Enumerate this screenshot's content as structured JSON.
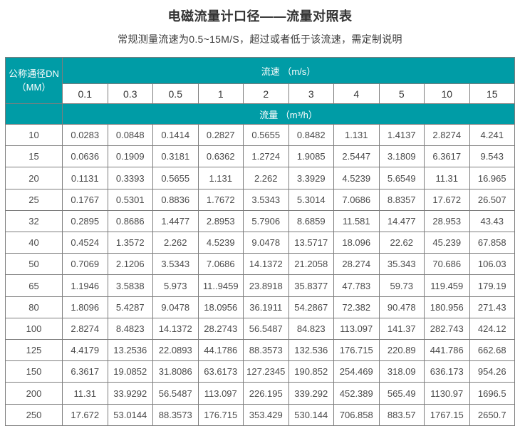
{
  "page": {
    "title": "电磁流量计口径——流量对照表",
    "subtitle": "常规测量流速为0.5~15M/S，超过或者低于该流速，需定制说明"
  },
  "table": {
    "corner_header_line1": "公称通径DN",
    "corner_header_line2": "（MM）",
    "velocity_header": "流速 （m/s）",
    "flow_header": "流量 （m³/h）",
    "velocities": [
      "0.1",
      "0.3",
      "0.5",
      "1",
      "2",
      "3",
      "4",
      "5",
      "10",
      "15"
    ],
    "rows": [
      {
        "dn": "10",
        "values": [
          "0.0283",
          "0.0848",
          "0.1414",
          "0.2827",
          "0.5655",
          "0.8482",
          "1.131",
          "1.4137",
          "2.8274",
          "4.241"
        ]
      },
      {
        "dn": "15",
        "values": [
          "0.0636",
          "0.1909",
          "0.3181",
          "0.6362",
          "1.2724",
          "1.9085",
          "2.5447",
          "3.1809",
          "6.3617",
          "9.543"
        ]
      },
      {
        "dn": "20",
        "values": [
          "0.1131",
          "0.3393",
          "0.5655",
          "1.131",
          "2.262",
          "3.3929",
          "4.5239",
          "5.6549",
          "11.31",
          "16.965"
        ]
      },
      {
        "dn": "25",
        "values": [
          "0.1767",
          "0.5301",
          "0.8836",
          "1.7672",
          "3.5343",
          "5.3014",
          "7.0686",
          "8.8357",
          "17.672",
          "26.507"
        ]
      },
      {
        "dn": "32",
        "values": [
          "0.2895",
          "0.8686",
          "1.4477",
          "2.8953",
          "5.7906",
          "8.6859",
          "11.581",
          "14.477",
          "28.953",
          "43.43"
        ]
      },
      {
        "dn": "40",
        "values": [
          "0.4524",
          "1.3572",
          "2.262",
          "4.5239",
          "9.0478",
          "13.5717",
          "18.096",
          "22.62",
          "45.239",
          "67.858"
        ]
      },
      {
        "dn": "50",
        "values": [
          "0.7069",
          "2.1206",
          "3.5343",
          "7.0686",
          "14.1372",
          "21.2058",
          "28.274",
          "35.343",
          "70.686",
          "106.03"
        ]
      },
      {
        "dn": "65",
        "values": [
          "1.1946",
          "3.5838",
          "5.973",
          "11..9459",
          "23.8918",
          "35.8377",
          "47.783",
          "59.73",
          "119.459",
          "179.19"
        ]
      },
      {
        "dn": "80",
        "values": [
          "1.8096",
          "5.4287",
          "9.0478",
          "18.0956",
          "36.1911",
          "54.2867",
          "72.382",
          "90.478",
          "180.956",
          "271.43"
        ]
      },
      {
        "dn": "100",
        "values": [
          "2.8274",
          "8.4823",
          "14.1372",
          "28.2743",
          "56.5487",
          "84.823",
          "113.097",
          "141.37",
          "282.743",
          "424.12"
        ]
      },
      {
        "dn": "125",
        "values": [
          "4.4179",
          "13.2536",
          "22.0893",
          "44.1786",
          "88.3573",
          "132.536",
          "176.715",
          "220.89",
          "441.786",
          "662.68"
        ]
      },
      {
        "dn": "150",
        "values": [
          "6.3617",
          "19.0852",
          "31.8086",
          "63.6173",
          "127.2345",
          "190.852",
          "254.469",
          "318.09",
          "636.173",
          "954.26"
        ]
      },
      {
        "dn": "200",
        "values": [
          "11.31",
          "33.9292",
          "56.5487",
          "113.097",
          "226.195",
          "339.292",
          "452.389",
          "565.49",
          "1130.97",
          "1696.5"
        ]
      },
      {
        "dn": "250",
        "values": [
          "17.672",
          "53.0144",
          "88.3573",
          "176.715",
          "353.429",
          "530.144",
          "706.858",
          "883.57",
          "1767.15",
          "2650.7"
        ]
      }
    ]
  },
  "colors": {
    "header_teal": "#009CA6",
    "border_gray": "#7d7d7d",
    "text_dark": "#4a4a4a"
  }
}
